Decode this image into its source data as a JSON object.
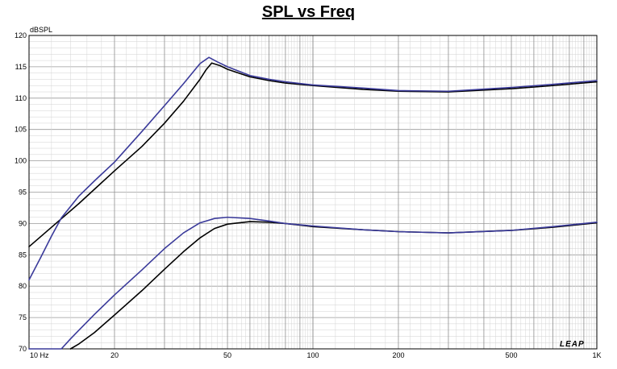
{
  "chart_data": {
    "type": "line",
    "title": "SPL vs Freq",
    "ylabel": "dBSPL",
    "xlabel": "",
    "xscale": "log",
    "xlim": [
      10,
      1000
    ],
    "ylim": [
      70,
      120
    ],
    "grid": true,
    "legend": "none",
    "x_ticks": [
      {
        "value": 10,
        "label": "10  Hz"
      },
      {
        "value": 20,
        "label": "20"
      },
      {
        "value": 50,
        "label": "50"
      },
      {
        "value": 100,
        "label": "100"
      },
      {
        "value": 200,
        "label": "200"
      },
      {
        "value": 500,
        "label": "500"
      },
      {
        "value": 1000,
        "label": "1K"
      }
    ],
    "y_ticks": [
      70,
      75,
      80,
      85,
      90,
      95,
      100,
      105,
      110,
      115,
      120
    ],
    "series": [
      {
        "color": "#000000",
        "x": [
          10,
          12,
          15,
          20,
          25,
          30,
          35,
          40,
          42,
          44,
          47,
          50,
          60,
          70,
          80,
          100,
          150,
          200,
          300,
          500,
          700,
          1000
        ],
        "y": [
          86.3,
          89.4,
          93.2,
          98.4,
          102.3,
          106,
          109.5,
          113,
          114.5,
          115.6,
          115.2,
          114.6,
          113.4,
          112.8,
          112.4,
          112,
          111.4,
          111.1,
          111.0,
          111.5,
          112.0,
          112.6
        ]
      },
      {
        "color": "#3a3a9a",
        "x": [
          10,
          11,
          12,
          13,
          15,
          17,
          20,
          25,
          30,
          35,
          40,
          43,
          46,
          50,
          60,
          70,
          80,
          100,
          150,
          200,
          300,
          500,
          700,
          1000
        ],
        "y": [
          81,
          84.6,
          88,
          90.9,
          94.4,
          96.8,
          99.8,
          104.7,
          108.8,
          112.3,
          115.5,
          116.5,
          115.8,
          115,
          113.6,
          113,
          112.6,
          112.1,
          111.6,
          111.2,
          111.1,
          111.7,
          112.2,
          112.8
        ]
      },
      {
        "color": "#000000",
        "x": [
          14,
          15,
          17,
          20,
          25,
          30,
          35,
          40,
          45,
          50,
          60,
          70,
          80,
          100,
          150,
          200,
          300,
          500,
          700,
          1000
        ],
        "y": [
          70,
          70.8,
          72.6,
          75.4,
          79.3,
          82.7,
          85.5,
          87.7,
          89.2,
          89.9,
          90.3,
          90.2,
          90.0,
          89.5,
          89.0,
          88.7,
          88.5,
          88.9,
          89.4,
          90.1
        ]
      },
      {
        "color": "#3a3a9a",
        "x": [
          10,
          13,
          14,
          15,
          17,
          20,
          25,
          30,
          35,
          40,
          45,
          50,
          60,
          70,
          80,
          100,
          150,
          200,
          300,
          500,
          700,
          1000
        ],
        "y": [
          70,
          70,
          71.6,
          73,
          75.5,
          78.6,
          82.6,
          86,
          88.5,
          90.1,
          90.8,
          91,
          90.8,
          90.4,
          90.0,
          89.6,
          89.0,
          88.7,
          88.5,
          88.9,
          89.5,
          90.2
        ]
      }
    ],
    "branding": "LEAP"
  }
}
